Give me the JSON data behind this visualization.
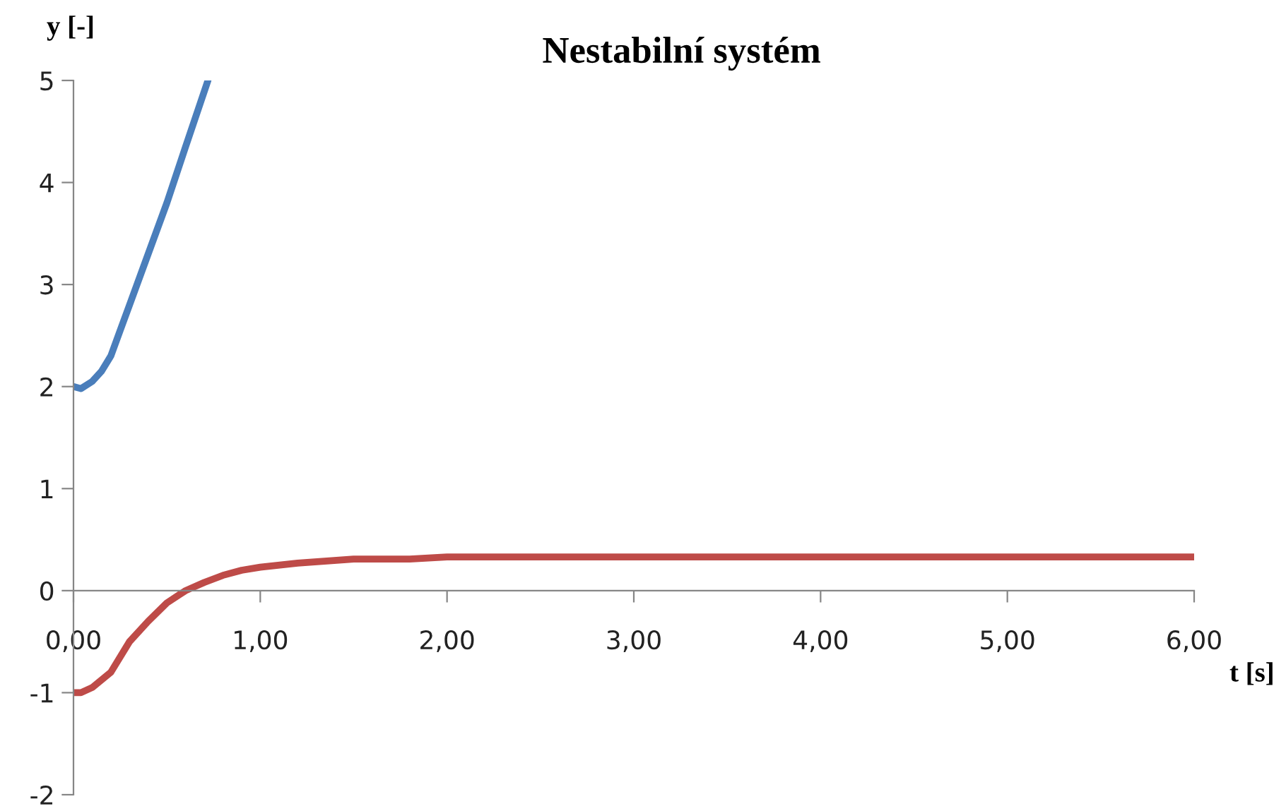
{
  "chart_data": {
    "type": "line",
    "title": "Nestabilní systém",
    "xlabel": "t [s]",
    "ylabel": "y [-]",
    "xlim": [
      0,
      6
    ],
    "ylim": [
      -2,
      5
    ],
    "xticks": [
      {
        "value": 0,
        "label": "0,00"
      },
      {
        "value": 1,
        "label": "1,00"
      },
      {
        "value": 2,
        "label": "2,00"
      },
      {
        "value": 3,
        "label": "3,00"
      },
      {
        "value": 4,
        "label": "4,00"
      },
      {
        "value": 5,
        "label": "5,00"
      },
      {
        "value": 6,
        "label": "6,00"
      }
    ],
    "yticks": [
      -2,
      -1,
      0,
      1,
      2,
      3,
      4,
      5
    ],
    "grid": false,
    "legend": false,
    "marker": "none",
    "line_style": "solid",
    "series": [
      {
        "color": "#4a7ebb",
        "x": [
          0,
          0.04,
          0.1,
          0.15,
          0.2,
          0.25,
          0.3,
          0.4,
          0.5,
          0.6,
          0.72
        ],
        "values": [
          2.0,
          1.98,
          2.05,
          2.15,
          2.3,
          2.55,
          2.8,
          3.3,
          3.8,
          4.35,
          5.0
        ]
      },
      {
        "color": "#be4b48",
        "x": [
          0,
          0.04,
          0.1,
          0.2,
          0.3,
          0.4,
          0.5,
          0.6,
          0.7,
          0.8,
          0.9,
          1.0,
          1.2,
          1.5,
          1.8,
          2.0,
          3.0,
          4.0,
          5.0,
          6.0
        ],
        "values": [
          -1.0,
          -1.0,
          -0.95,
          -0.8,
          -0.5,
          -0.3,
          -0.12,
          0.0,
          0.08,
          0.15,
          0.2,
          0.23,
          0.27,
          0.31,
          0.31,
          0.33,
          0.33,
          0.33,
          0.33,
          0.33
        ]
      }
    ]
  }
}
